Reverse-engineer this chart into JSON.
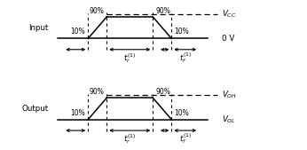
{
  "bg_color": "#ffffff",
  "line_color": "#000000",
  "fig_width": 3.46,
  "fig_height": 1.69,
  "dpi": 100,
  "pct10": "10%",
  "pct90": "90%",
  "input_label": "Input",
  "output_label": "Output",
  "vcc_label": "$V_{CC}$",
  "v0v_label": "0 V",
  "voh_label": "$V_{OH}$",
  "vol_label": "$V_{OL}$",
  "tr_label": "$t_r^{(1)}$",
  "tf_label": "$t_f^{(1)}$"
}
